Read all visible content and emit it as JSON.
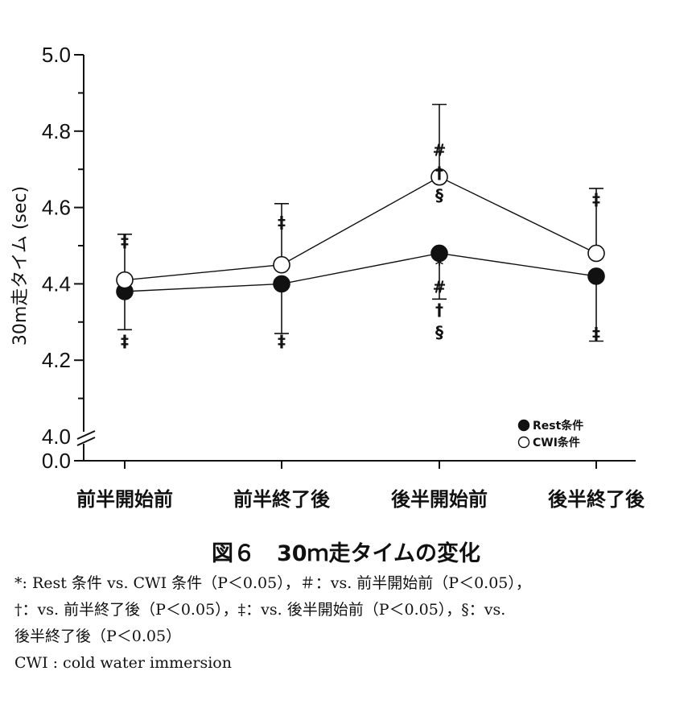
{
  "chart_data": {
    "type": "line",
    "title": "",
    "ylabel": "30m走タイム (sec)",
    "xlabel": "",
    "categories": [
      "前半開始前",
      "前半終了後",
      "後半開始前",
      "後半終了後"
    ],
    "ylim": [
      4.0,
      5.0
    ],
    "axis_break": true,
    "yticks": [
      "5.0",
      "4.8",
      "4.6",
      "4.4",
      "4.2",
      "4.0",
      "0.0"
    ],
    "series": [
      {
        "name": "Rest条件",
        "marker": "filled-circle",
        "values": [
          4.38,
          4.4,
          4.48,
          4.42
        ],
        "error": [
          0.1,
          0.13,
          0.12,
          0.17
        ],
        "error_dir": "down"
      },
      {
        "name": "CWI条件",
        "marker": "open-circle",
        "values": [
          4.41,
          4.45,
          4.68,
          4.48
        ],
        "error": [
          0.12,
          0.16,
          0.19,
          0.17
        ],
        "error_dir": "up"
      }
    ],
    "annotations": {
      "CWI条件": [
        [
          "‡"
        ],
        [
          "‡"
        ],
        [
          "*",
          "#",
          "†",
          "§"
        ],
        [
          "‡"
        ]
      ],
      "Rest条件": [
        [
          "‡"
        ],
        [
          "‡"
        ],
        [
          "#",
          "†",
          "§"
        ],
        [
          "‡"
        ]
      ]
    },
    "legend_position": "bottom-right",
    "grid": false
  },
  "caption": "図６　30ｍ走タイムの変化",
  "notes": [
    "*: Rest 条件 vs. CWI 条件（P＜0.05），＃：vs. 前半開始前（P＜0.05），",
    "†：vs. 前半終了後（P＜0.05），‡：vs. 後半開始前（P＜0.05），§：vs.",
    "後半終了後（P＜0.05）",
    "CWI : cold water immersion"
  ],
  "colors": {
    "ink": "#111111",
    "open_fill": "#ffffff"
  }
}
